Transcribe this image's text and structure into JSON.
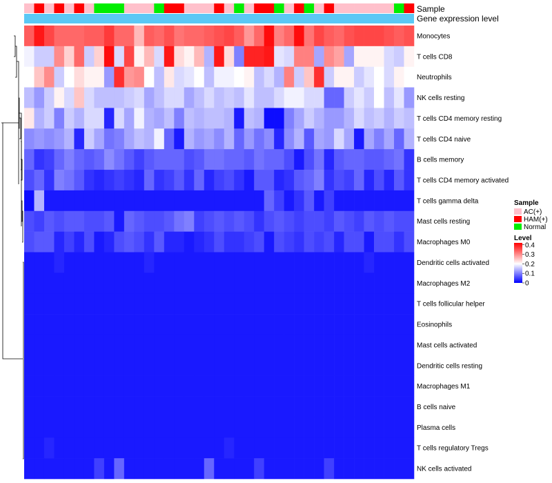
{
  "chart_data": {
    "type": "heatmap",
    "title": "",
    "xlabel": "",
    "ylabel": "",
    "annotation_tracks": [
      "Sample",
      "Gene expression level"
    ],
    "sample_legend": {
      "title": "Sample",
      "entries": [
        {
          "label": "AC(+)",
          "color": "#ffc0cb"
        },
        {
          "label": "HAM(+)",
          "color": "#ff0000"
        },
        {
          "label": "Normal",
          "color": "#00ee00"
        }
      ]
    },
    "level_legend": {
      "title": "Level",
      "ticks": [
        "0.4",
        "0.3",
        "0.2",
        "0.1",
        "0"
      ],
      "tick_values": [
        0.4,
        0.3,
        0.2,
        0.1,
        0
      ],
      "range": [
        0,
        0.42
      ],
      "colors": {
        "low": "#0000ff",
        "mid": "#ffffff",
        "high": "#ff0000"
      },
      "midpoint": 0.2
    },
    "gene_expression_color": "#5bc8f5",
    "samples": [
      "AC(+)",
      "HAM(+)",
      "AC(+)",
      "HAM(+)",
      "AC(+)",
      "HAM(+)",
      "AC(+)",
      "Normal",
      "Normal",
      "Normal",
      "AC(+)",
      "AC(+)",
      "AC(+)",
      "Normal",
      "HAM(+)",
      "HAM(+)",
      "AC(+)",
      "AC(+)",
      "AC(+)",
      "HAM(+)",
      "AC(+)",
      "Normal",
      "AC(+)",
      "HAM(+)",
      "HAM(+)",
      "Normal",
      "AC(+)",
      "HAM(+)",
      "Normal",
      "AC(+)",
      "HAM(+)",
      "AC(+)",
      "AC(+)",
      "AC(+)",
      "AC(+)",
      "AC(+)",
      "AC(+)",
      "Normal",
      "HAM(+)"
    ],
    "rows": [
      "Monocytes",
      "T cells CD8",
      "Neutrophils",
      "NK cells resting",
      "T cells CD4 memory resting",
      "T cells CD4 naive",
      "B cells memory",
      "T cells CD4 memory activated",
      "T cells gamma delta",
      "Mast cells resting",
      "Macrophages M0",
      "Dendritic cells activated",
      "Macrophages M2",
      "T cells follicular helper",
      "Eosinophils",
      "Mast cells activated",
      "Dendritic cells resting",
      "Macrophages M1",
      "B cells naive",
      "Plasma cells",
      "T cells regulatory  Tregs",
      "NK cells activated"
    ],
    "values": [
      [
        0.34,
        0.4,
        0.36,
        0.33,
        0.33,
        0.33,
        0.34,
        0.34,
        0.37,
        0.33,
        0.33,
        0.26,
        0.34,
        0.33,
        0.35,
        0.32,
        0.33,
        0.33,
        0.34,
        0.35,
        0.36,
        0.34,
        0.29,
        0.33,
        0.41,
        0.31,
        0.33,
        0.41,
        0.32,
        0.36,
        0.34,
        0.33,
        0.35,
        0.36,
        0.36,
        0.36,
        0.35,
        0.34,
        0.35
      ],
      [
        0.19,
        0.16,
        0.16,
        0.3,
        0.24,
        0.33,
        0.16,
        0.24,
        0.41,
        0.17,
        0.36,
        0.21,
        0.26,
        0.17,
        0.4,
        0.23,
        0.21,
        0.26,
        0.14,
        0.4,
        0.23,
        0.1,
        0.39,
        0.39,
        0.4,
        0.18,
        0.17,
        0.31,
        0.31,
        0.13,
        0.3,
        0.28,
        0.13,
        0.21,
        0.21,
        0.21,
        0.17,
        0.16,
        0.21
      ],
      [
        0.2,
        0.25,
        0.3,
        0.16,
        0.2,
        0.23,
        0.21,
        0.21,
        0.12,
        0.38,
        0.29,
        0.3,
        0.2,
        0.15,
        0.22,
        0.17,
        0.18,
        0.2,
        0.15,
        0.19,
        0.19,
        0.2,
        0.21,
        0.15,
        0.17,
        0.14,
        0.31,
        0.16,
        0.25,
        0.38,
        0.16,
        0.21,
        0.21,
        0.16,
        0.18,
        0.2,
        0.17,
        0.21,
        0.2
      ],
      [
        0.15,
        0.12,
        0.16,
        0.21,
        0.17,
        0.25,
        0.17,
        0.15,
        0.15,
        0.15,
        0.16,
        0.17,
        0.13,
        0.15,
        0.17,
        0.17,
        0.13,
        0.15,
        0.17,
        0.15,
        0.16,
        0.15,
        0.18,
        0.15,
        0.15,
        0.17,
        0.19,
        0.19,
        0.17,
        0.17,
        0.08,
        0.08,
        0.16,
        0.18,
        0.16,
        0.2,
        0.15,
        0.18,
        0.12
      ],
      [
        0.22,
        0.14,
        0.16,
        0.1,
        0.16,
        0.14,
        0.17,
        0.17,
        0.03,
        0.17,
        0.13,
        0.19,
        0.14,
        0.13,
        0.15,
        0.1,
        0.15,
        0.14,
        0.15,
        0.15,
        0.14,
        0.02,
        0.15,
        0.14,
        0.01,
        0.01,
        0.1,
        0.13,
        0.16,
        0.14,
        0.12,
        0.12,
        0.14,
        0.17,
        0.15,
        0.16,
        0.14,
        0.16,
        0.15
      ],
      [
        0.11,
        0.12,
        0.11,
        0.12,
        0.14,
        0.03,
        0.16,
        0.13,
        0.09,
        0.1,
        0.13,
        0.15,
        0.14,
        0.19,
        0.08,
        0.02,
        0.14,
        0.12,
        0.13,
        0.11,
        0.14,
        0.08,
        0.12,
        0.09,
        0.11,
        0.03,
        0.11,
        0.14,
        0.07,
        0.13,
        0.12,
        0.17,
        0.13,
        0.02,
        0.13,
        0.1,
        0.13,
        0.08,
        0.14
      ],
      [
        0.08,
        0.04,
        0.05,
        0.08,
        0.1,
        0.08,
        0.07,
        0.08,
        0.11,
        0.09,
        0.07,
        0.05,
        0.07,
        0.08,
        0.08,
        0.08,
        0.06,
        0.07,
        0.09,
        0.09,
        0.08,
        0.08,
        0.07,
        0.09,
        0.08,
        0.08,
        0.06,
        0.02,
        0.06,
        0.09,
        0.03,
        0.07,
        0.08,
        0.08,
        0.07,
        0.07,
        0.08,
        0.09,
        0.04
      ],
      [
        0.06,
        0.08,
        0.04,
        0.1,
        0.09,
        0.07,
        0.04,
        0.03,
        0.04,
        0.05,
        0.04,
        0.03,
        0.08,
        0.04,
        0.05,
        0.07,
        0.04,
        0.08,
        0.03,
        0.05,
        0.06,
        0.04,
        0.02,
        0.07,
        0.07,
        0.03,
        0.04,
        0.07,
        0.08,
        0.1,
        0.04,
        0.06,
        0.05,
        0.08,
        0.03,
        0.06,
        0.03,
        0.07,
        0.04
      ],
      [
        0.01,
        0.14,
        0.02,
        0.02,
        0.02,
        0.02,
        0.02,
        0.02,
        0.02,
        0.02,
        0.02,
        0.02,
        0.02,
        0.02,
        0.02,
        0.02,
        0.02,
        0.02,
        0.02,
        0.02,
        0.02,
        0.02,
        0.02,
        0.02,
        0.08,
        0.05,
        0.02,
        0.04,
        0.07,
        0.02,
        0.05,
        0.02,
        0.02,
        0.02,
        0.02,
        0.02,
        0.02,
        0.02,
        0.02
      ],
      [
        0.06,
        0.05,
        0.07,
        0.06,
        0.07,
        0.07,
        0.06,
        0.06,
        0.07,
        0.02,
        0.08,
        0.07,
        0.06,
        0.06,
        0.07,
        0.09,
        0.1,
        0.05,
        0.06,
        0.07,
        0.06,
        0.07,
        0.06,
        0.04,
        0.06,
        0.07,
        0.06,
        0.05,
        0.06,
        0.06,
        0.05,
        0.07,
        0.06,
        0.05,
        0.07,
        0.06,
        0.07,
        0.06,
        0.06
      ],
      [
        0.06,
        0.07,
        0.07,
        0.03,
        0.05,
        0.03,
        0.06,
        0.02,
        0.03,
        0.06,
        0.07,
        0.06,
        0.04,
        0.07,
        0.03,
        0.03,
        0.02,
        0.03,
        0.04,
        0.06,
        0.04,
        0.04,
        0.05,
        0.06,
        0.02,
        0.06,
        0.05,
        0.04,
        0.06,
        0.05,
        0.06,
        0.03,
        0.06,
        0.06,
        0.02,
        0.06,
        0.06,
        0.04,
        0.06
      ],
      [
        0.02,
        0.02,
        0.02,
        0.03,
        0.02,
        0.02,
        0.02,
        0.02,
        0.02,
        0.02,
        0.02,
        0.02,
        0.03,
        0.02,
        0.02,
        0.02,
        0.02,
        0.02,
        0.02,
        0.02,
        0.02,
        0.02,
        0.02,
        0.02,
        0.02,
        0.02,
        0.02,
        0.02,
        0.02,
        0.02,
        0.02,
        0.02,
        0.02,
        0.02,
        0.03,
        0.02,
        0.02,
        0.02,
        0.02
      ],
      [
        0.02,
        0.02,
        0.02,
        0.02,
        0.02,
        0.02,
        0.02,
        0.02,
        0.02,
        0.02,
        0.02,
        0.02,
        0.02,
        0.02,
        0.02,
        0.02,
        0.02,
        0.02,
        0.02,
        0.02,
        0.02,
        0.02,
        0.02,
        0.02,
        0.02,
        0.02,
        0.02,
        0.02,
        0.02,
        0.02,
        0.02,
        0.02,
        0.02,
        0.02,
        0.02,
        0.02,
        0.02,
        0.02,
        0.02
      ],
      [
        0.02,
        0.02,
        0.02,
        0.02,
        0.02,
        0.02,
        0.02,
        0.02,
        0.02,
        0.02,
        0.02,
        0.02,
        0.02,
        0.02,
        0.02,
        0.02,
        0.02,
        0.02,
        0.02,
        0.02,
        0.02,
        0.02,
        0.02,
        0.02,
        0.02,
        0.02,
        0.02,
        0.02,
        0.02,
        0.02,
        0.02,
        0.02,
        0.02,
        0.02,
        0.02,
        0.02,
        0.02,
        0.02,
        0.02
      ],
      [
        0.02,
        0.02,
        0.02,
        0.02,
        0.02,
        0.02,
        0.02,
        0.02,
        0.02,
        0.02,
        0.02,
        0.02,
        0.02,
        0.02,
        0.02,
        0.02,
        0.02,
        0.02,
        0.02,
        0.02,
        0.02,
        0.02,
        0.02,
        0.02,
        0.02,
        0.02,
        0.02,
        0.02,
        0.02,
        0.02,
        0.02,
        0.02,
        0.02,
        0.02,
        0.02,
        0.02,
        0.02,
        0.02,
        0.02
      ],
      [
        0.02,
        0.02,
        0.02,
        0.02,
        0.02,
        0.02,
        0.02,
        0.02,
        0.02,
        0.02,
        0.02,
        0.02,
        0.02,
        0.02,
        0.02,
        0.02,
        0.02,
        0.02,
        0.02,
        0.02,
        0.02,
        0.02,
        0.02,
        0.02,
        0.02,
        0.02,
        0.02,
        0.02,
        0.02,
        0.02,
        0.02,
        0.02,
        0.02,
        0.02,
        0.02,
        0.02,
        0.02,
        0.02,
        0.02
      ],
      [
        0.02,
        0.02,
        0.02,
        0.02,
        0.02,
        0.02,
        0.02,
        0.02,
        0.02,
        0.02,
        0.02,
        0.02,
        0.02,
        0.02,
        0.02,
        0.02,
        0.02,
        0.02,
        0.02,
        0.02,
        0.02,
        0.02,
        0.02,
        0.02,
        0.02,
        0.02,
        0.02,
        0.02,
        0.02,
        0.02,
        0.02,
        0.02,
        0.02,
        0.02,
        0.02,
        0.02,
        0.02,
        0.02,
        0.02
      ],
      [
        0.02,
        0.02,
        0.02,
        0.02,
        0.02,
        0.02,
        0.02,
        0.02,
        0.02,
        0.02,
        0.02,
        0.02,
        0.02,
        0.02,
        0.02,
        0.02,
        0.02,
        0.02,
        0.02,
        0.02,
        0.02,
        0.02,
        0.02,
        0.02,
        0.02,
        0.02,
        0.02,
        0.02,
        0.02,
        0.02,
        0.02,
        0.02,
        0.02,
        0.02,
        0.02,
        0.02,
        0.02,
        0.02,
        0.02
      ],
      [
        0.02,
        0.02,
        0.02,
        0.02,
        0.02,
        0.02,
        0.02,
        0.02,
        0.02,
        0.02,
        0.02,
        0.02,
        0.02,
        0.02,
        0.02,
        0.02,
        0.02,
        0.02,
        0.02,
        0.02,
        0.02,
        0.02,
        0.02,
        0.02,
        0.02,
        0.02,
        0.02,
        0.02,
        0.02,
        0.02,
        0.02,
        0.02,
        0.02,
        0.02,
        0.02,
        0.02,
        0.02,
        0.02,
        0.02
      ],
      [
        0.02,
        0.02,
        0.02,
        0.02,
        0.02,
        0.02,
        0.02,
        0.02,
        0.02,
        0.02,
        0.02,
        0.02,
        0.02,
        0.02,
        0.02,
        0.02,
        0.02,
        0.02,
        0.02,
        0.02,
        0.02,
        0.02,
        0.02,
        0.02,
        0.02,
        0.02,
        0.02,
        0.02,
        0.02,
        0.02,
        0.02,
        0.02,
        0.02,
        0.02,
        0.02,
        0.02,
        0.02,
        0.02,
        0.02
      ],
      [
        0.02,
        0.02,
        0.03,
        0.02,
        0.02,
        0.02,
        0.02,
        0.02,
        0.02,
        0.02,
        0.02,
        0.02,
        0.02,
        0.02,
        0.02,
        0.02,
        0.02,
        0.02,
        0.02,
        0.02,
        0.03,
        0.02,
        0.02,
        0.02,
        0.02,
        0.02,
        0.02,
        0.02,
        0.02,
        0.02,
        0.02,
        0.02,
        0.02,
        0.02,
        0.02,
        0.02,
        0.02,
        0.02,
        0.02
      ],
      [
        0.02,
        0.02,
        0.02,
        0.02,
        0.02,
        0.02,
        0.02,
        0.05,
        0.02,
        0.08,
        0.02,
        0.02,
        0.02,
        0.02,
        0.02,
        0.02,
        0.02,
        0.02,
        0.08,
        0.02,
        0.02,
        0.02,
        0.02,
        0.05,
        0.02,
        0.02,
        0.02,
        0.02,
        0.02,
        0.02,
        0.05,
        0.02,
        0.02,
        0.02,
        0.02,
        0.02,
        0.02,
        0.02,
        0.02
      ]
    ]
  }
}
